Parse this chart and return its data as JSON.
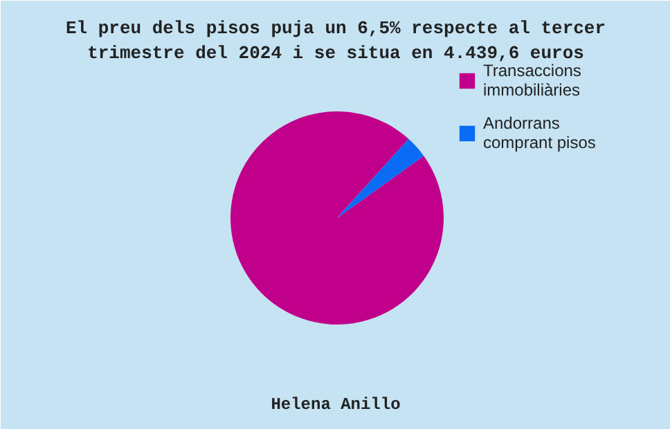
{
  "chart_data": {
    "type": "pie",
    "title": "El preu dels pisos puja un 6,5% respecte al tercer trimestre del 2024 i se situa en 4.439,6 euros",
    "categories": [
      "Transaccions immobiliàries",
      "Andorrans comprant pisos"
    ],
    "values": [
      96.6,
      3.4
    ],
    "colors": [
      "#c0008a",
      "#0a6cf5"
    ],
    "legend": "right",
    "annotations": [
      "Helena Anillo"
    ]
  }
}
